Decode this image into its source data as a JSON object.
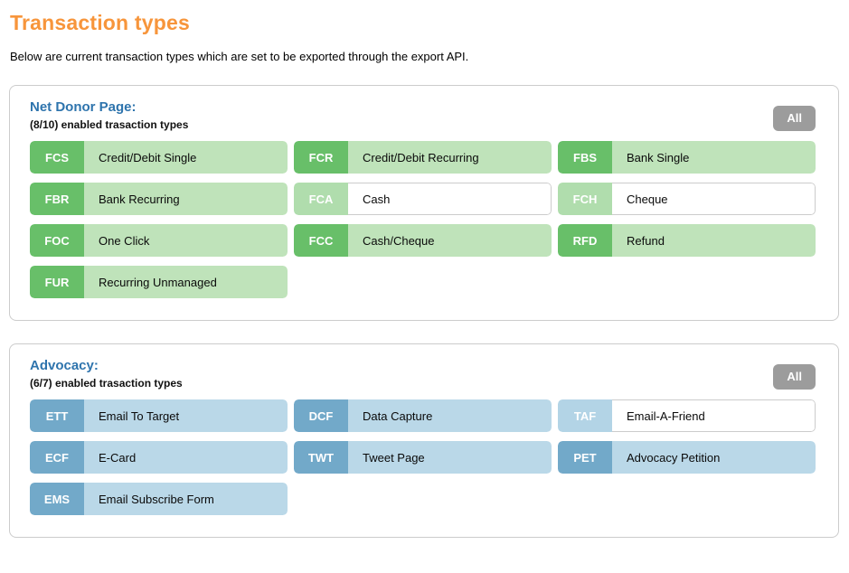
{
  "page": {
    "title": "Transaction types",
    "description": "Below are current transaction types which are set to be exported through the export API."
  },
  "colors": {
    "title_orange": "#f7953b",
    "section_header_blue": "#2e74ad",
    "green_enabled_badge": "#68bf69",
    "green_enabled_body": "#bfe3ba",
    "green_disabled_badge": "#b0ddad",
    "blue_enabled_badge": "#72a9c9",
    "blue_enabled_body": "#bad8e8",
    "blue_disabled_badge": "#b3d4e6",
    "all_button_gray": "#9c9c9c",
    "panel_border": "#cccccc"
  },
  "sections": [
    {
      "id": "net-donor-page",
      "name": "Net Donor Page:",
      "subtitle": "(8/10) enabled trasaction types",
      "all_button_label": "All",
      "theme": "green",
      "items": [
        {
          "code": "FCS",
          "label": "Credit/Debit Single",
          "enabled": true
        },
        {
          "code": "FCR",
          "label": "Credit/Debit Recurring",
          "enabled": true
        },
        {
          "code": "FBS",
          "label": "Bank Single",
          "enabled": true
        },
        {
          "code": "FBR",
          "label": "Bank Recurring",
          "enabled": true
        },
        {
          "code": "FCA",
          "label": "Cash",
          "enabled": false
        },
        {
          "code": "FCH",
          "label": "Cheque",
          "enabled": false
        },
        {
          "code": "FOC",
          "label": "One Click",
          "enabled": true
        },
        {
          "code": "FCC",
          "label": "Cash/Cheque",
          "enabled": true
        },
        {
          "code": "RFD",
          "label": "Refund",
          "enabled": true
        },
        {
          "code": "FUR",
          "label": "Recurring Unmanaged",
          "enabled": true
        }
      ]
    },
    {
      "id": "advocacy",
      "name": "Advocacy:",
      "subtitle": "(6/7) enabled trasaction types",
      "all_button_label": "All",
      "theme": "blue",
      "items": [
        {
          "code": "ETT",
          "label": "Email To Target",
          "enabled": true
        },
        {
          "code": "DCF",
          "label": "Data Capture",
          "enabled": true
        },
        {
          "code": "TAF",
          "label": "Email-A-Friend",
          "enabled": false
        },
        {
          "code": "ECF",
          "label": "E-Card",
          "enabled": true
        },
        {
          "code": "TWT",
          "label": "Tweet Page",
          "enabled": true
        },
        {
          "code": "PET",
          "label": "Advocacy Petition",
          "enabled": true
        },
        {
          "code": "EMS",
          "label": "Email Subscribe Form",
          "enabled": true
        }
      ]
    }
  ]
}
